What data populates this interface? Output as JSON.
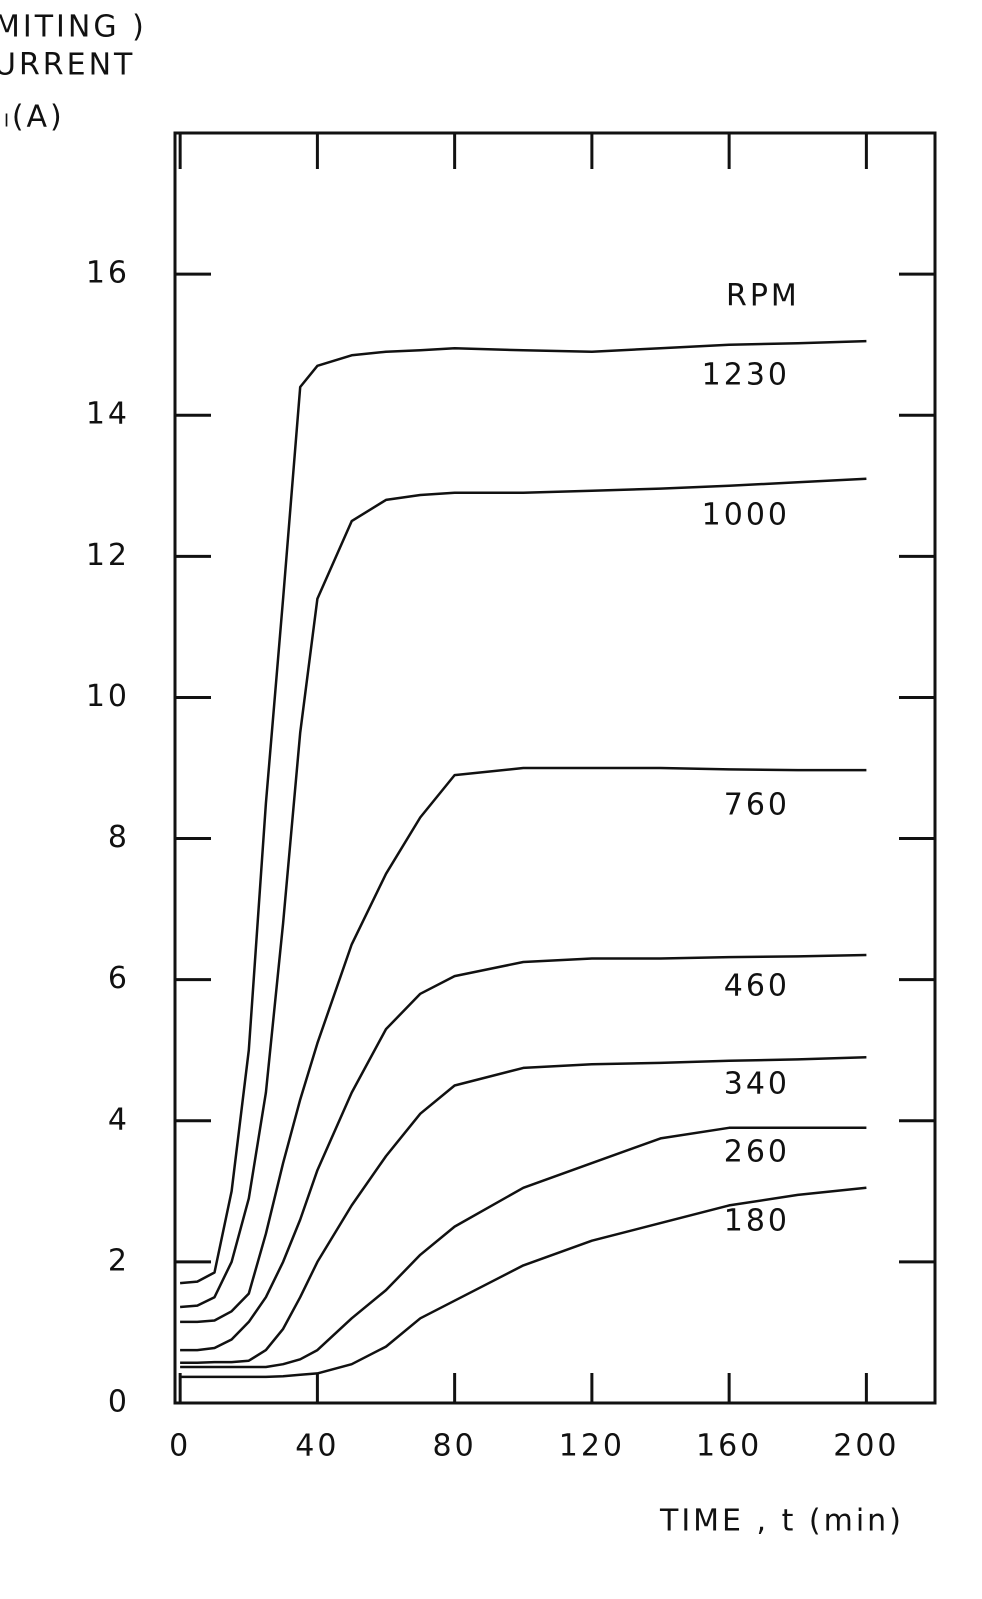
{
  "chart_data": {
    "type": "line",
    "y_label": [
      "MITING )",
      "URRENT",
      "Iₗ(A)"
    ],
    "x_label": "TIME   , t (min)",
    "legend_title": "RPM",
    "x": [
      0,
      5,
      10,
      15,
      20,
      25,
      30,
      35,
      40,
      50,
      60,
      70,
      80,
      100,
      120,
      140,
      160,
      180,
      200
    ],
    "series": [
      {
        "name": "1230",
        "color": "#111111",
        "values": [
          1.7,
          1.72,
          1.85,
          3.0,
          5.0,
          8.5,
          11.4,
          14.4,
          14.7,
          14.85,
          14.9,
          14.92,
          14.95,
          14.92,
          14.9,
          14.95,
          15.0,
          15.02,
          15.05
        ]
      },
      {
        "name": "1000",
        "color": "#111111",
        "values": [
          1.36,
          1.38,
          1.5,
          2.0,
          2.9,
          4.4,
          6.8,
          9.5,
          11.4,
          12.5,
          12.8,
          12.87,
          12.9,
          12.9,
          12.93,
          12.96,
          13.0,
          13.05,
          13.1
        ]
      },
      {
        "name": "760",
        "color": "#111111",
        "values": [
          1.15,
          1.15,
          1.17,
          1.3,
          1.55,
          2.4,
          3.4,
          4.3,
          5.1,
          6.5,
          7.5,
          8.3,
          8.9,
          9.0,
          9.0,
          9.0,
          8.98,
          8.97,
          8.97
        ]
      },
      {
        "name": "460",
        "color": "#111111",
        "values": [
          0.75,
          0.75,
          0.78,
          0.9,
          1.15,
          1.5,
          2.0,
          2.6,
          3.3,
          4.4,
          5.3,
          5.8,
          6.05,
          6.25,
          6.3,
          6.3,
          6.32,
          6.33,
          6.35
        ]
      },
      {
        "name": "340",
        "color": "#111111",
        "values": [
          0.57,
          0.57,
          0.58,
          0.58,
          0.6,
          0.75,
          1.05,
          1.5,
          2.0,
          2.8,
          3.5,
          4.1,
          4.5,
          4.75,
          4.8,
          4.82,
          4.85,
          4.87,
          4.9
        ]
      },
      {
        "name": "260",
        "color": "#111111",
        "values": [
          0.51,
          0.51,
          0.51,
          0.51,
          0.51,
          0.51,
          0.55,
          0.62,
          0.75,
          1.2,
          1.6,
          2.1,
          2.5,
          3.05,
          3.4,
          3.75,
          3.9,
          3.9,
          3.9
        ]
      },
      {
        "name": "180",
        "color": "#111111",
        "values": [
          0.37,
          0.37,
          0.37,
          0.37,
          0.37,
          0.37,
          0.38,
          0.4,
          0.42,
          0.55,
          0.8,
          1.2,
          1.45,
          1.95,
          2.3,
          2.55,
          2.8,
          2.95,
          3.05
        ]
      }
    ],
    "xlim": [
      -1.5,
      220
    ],
    "ylim": [
      0,
      18
    ],
    "xticks": [
      0,
      40,
      80,
      120,
      160,
      200
    ],
    "yticks": [
      0,
      2,
      4,
      6,
      8,
      10,
      12,
      14,
      16
    ],
    "grid": false
  }
}
